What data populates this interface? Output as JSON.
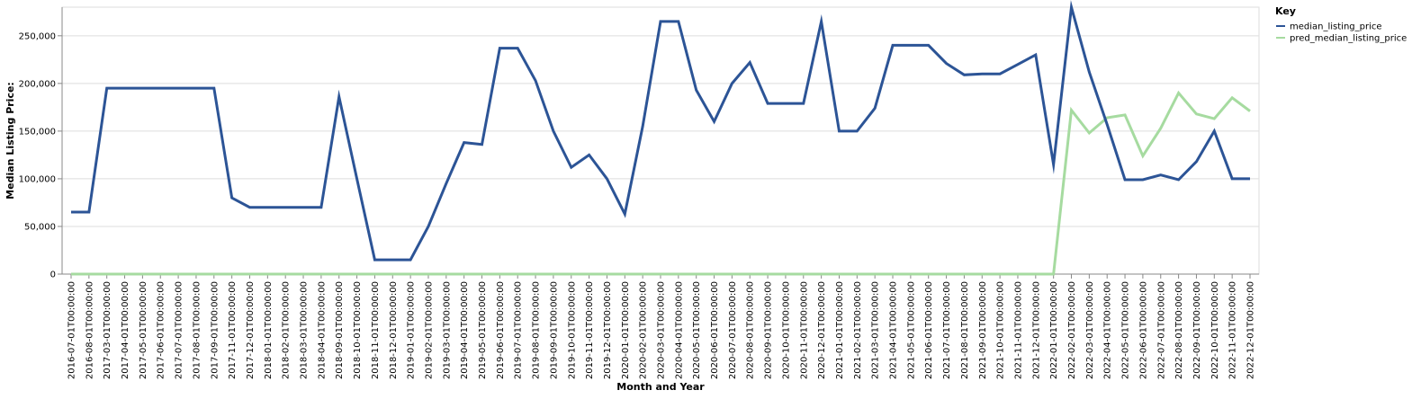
{
  "chart_data": {
    "type": "line",
    "xlabel": "Month and Year",
    "ylabel": "Median Listing Price:",
    "ylim": [
      0,
      280000
    ],
    "y_ticks": [
      0,
      50000,
      100000,
      150000,
      200000,
      250000
    ],
    "y_tick_labels": [
      "0",
      "50,000",
      "100,000",
      "150,000",
      "200,000",
      "250,000"
    ],
    "grid": true,
    "legend": {
      "title": "Key",
      "placement": "top-right"
    },
    "categories": [
      "2016-07-01T00:00:00",
      "2016-08-01T00:00:00",
      "2017-03-01T00:00:00",
      "2017-04-01T00:00:00",
      "2017-05-01T00:00:00",
      "2017-06-01T00:00:00",
      "2017-07-01T00:00:00",
      "2017-08-01T00:00:00",
      "2017-09-01T00:00:00",
      "2017-11-01T00:00:00",
      "2017-12-01T00:00:00",
      "2018-01-01T00:00:00",
      "2018-02-01T00:00:00",
      "2018-03-01T00:00:00",
      "2018-04-01T00:00:00",
      "2018-09-01T00:00:00",
      "2018-10-01T00:00:00",
      "2018-11-01T00:00:00",
      "2018-12-01T00:00:00",
      "2019-01-01T00:00:00",
      "2019-02-01T00:00:00",
      "2019-03-01T00:00:00",
      "2019-04-01T00:00:00",
      "2019-05-01T00:00:00",
      "2019-06-01T00:00:00",
      "2019-07-01T00:00:00",
      "2019-08-01T00:00:00",
      "2019-09-01T00:00:00",
      "2019-10-01T00:00:00",
      "2019-11-01T00:00:00",
      "2019-12-01T00:00:00",
      "2020-01-01T00:00:00",
      "2020-02-01T00:00:00",
      "2020-03-01T00:00:00",
      "2020-04-01T00:00:00",
      "2020-05-01T00:00:00",
      "2020-06-01T00:00:00",
      "2020-07-01T00:00:00",
      "2020-08-01T00:00:00",
      "2020-09-01T00:00:00",
      "2020-10-01T00:00:00",
      "2020-11-01T00:00:00",
      "2020-12-01T00:00:00",
      "2021-01-01T00:00:00",
      "2021-02-01T00:00:00",
      "2021-03-01T00:00:00",
      "2021-04-01T00:00:00",
      "2021-05-01T00:00:00",
      "2021-06-01T00:00:00",
      "2021-07-01T00:00:00",
      "2021-08-01T00:00:00",
      "2021-09-01T00:00:00",
      "2021-10-01T00:00:00",
      "2021-11-01T00:00:00",
      "2021-12-01T00:00:00",
      "2022-01-01T00:00:00",
      "2022-02-01T00:00:00",
      "2022-03-01T00:00:00",
      "2022-04-01T00:00:00",
      "2022-05-01T00:00:00",
      "2022-06-01T00:00:00",
      "2022-07-01T00:00:00",
      "2022-08-01T00:00:00",
      "2022-09-01T00:00:00",
      "2022-10-01T00:00:00",
      "2022-11-01T00:00:00",
      "2022-12-01T00:00:00"
    ],
    "series": [
      {
        "name": "median_listing_price",
        "color": "#2c5496",
        "values": [
          65000,
          65000,
          195000,
          195000,
          195000,
          195000,
          195000,
          195000,
          195000,
          80000,
          70000,
          70000,
          70000,
          70000,
          70000,
          186000,
          100000,
          15000,
          15000,
          15000,
          50000,
          95000,
          138000,
          136000,
          237000,
          237000,
          203000,
          150000,
          112000,
          125000,
          100000,
          63000,
          155000,
          265000,
          265000,
          193000,
          160000,
          200000,
          222000,
          179000,
          179000,
          179000,
          265000,
          150000,
          150000,
          174000,
          240000,
          240000,
          240000,
          221000,
          209000,
          210000,
          210000,
          220000,
          230000,
          115000,
          280000,
          212000,
          157000,
          99000,
          99000,
          104000,
          99000,
          118000,
          150000,
          100000,
          100000
        ]
      },
      {
        "name": "pred_median_listing_price",
        "color": "#a6dba0",
        "values": [
          0,
          0,
          0,
          0,
          0,
          0,
          0,
          0,
          0,
          0,
          0,
          0,
          0,
          0,
          0,
          0,
          0,
          0,
          0,
          0,
          0,
          0,
          0,
          0,
          0,
          0,
          0,
          0,
          0,
          0,
          0,
          0,
          0,
          0,
          0,
          0,
          0,
          0,
          0,
          0,
          0,
          0,
          0,
          0,
          0,
          0,
          0,
          0,
          0,
          0,
          0,
          0,
          0,
          0,
          0,
          0,
          172000,
          148000,
          164000,
          167000,
          124000,
          153000,
          190000,
          168000,
          163000,
          185000,
          171000
        ]
      }
    ]
  }
}
